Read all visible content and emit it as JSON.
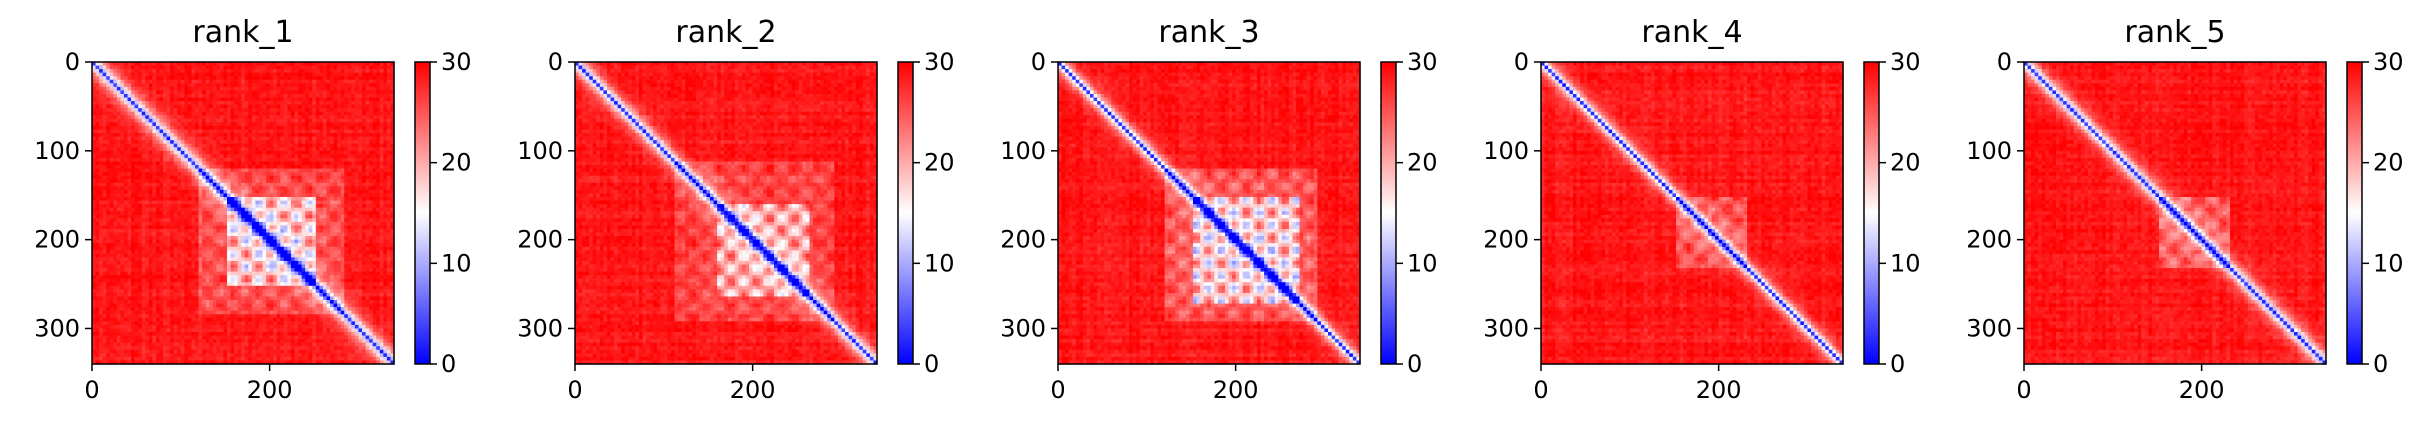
{
  "chart_data": [
    {
      "type": "heatmap",
      "title": "rank_1",
      "xticks": [
        "0",
        "200"
      ],
      "yticks": [
        "0",
        "100",
        "200",
        "300"
      ],
      "xlim": [
        0,
        340
      ],
      "ylim": [
        340,
        0
      ],
      "colorbar": {
        "ticks": [
          "0",
          "10",
          "20",
          "30"
        ],
        "range": [
          0,
          30
        ],
        "colors": [
          "#0000ff",
          "#ffffff",
          "#ff0000"
        ]
      }
    },
    {
      "type": "heatmap",
      "title": "rank_2",
      "xticks": [
        "0",
        "200"
      ],
      "yticks": [
        "0",
        "100",
        "200",
        "300"
      ],
      "xlim": [
        0,
        340
      ],
      "ylim": [
        340,
        0
      ],
      "colorbar": {
        "ticks": [
          "0",
          "10",
          "20",
          "30"
        ],
        "range": [
          0,
          30
        ],
        "colors": [
          "#0000ff",
          "#ffffff",
          "#ff0000"
        ]
      }
    },
    {
      "type": "heatmap",
      "title": "rank_3",
      "xticks": [
        "0",
        "200"
      ],
      "yticks": [
        "0",
        "100",
        "200",
        "300"
      ],
      "xlim": [
        0,
        340
      ],
      "ylim": [
        340,
        0
      ],
      "colorbar": {
        "ticks": [
          "0",
          "10",
          "20",
          "30"
        ],
        "range": [
          0,
          30
        ],
        "colors": [
          "#0000ff",
          "#ffffff",
          "#ff0000"
        ]
      }
    },
    {
      "type": "heatmap",
      "title": "rank_4",
      "xticks": [
        "0",
        "200"
      ],
      "yticks": [
        "0",
        "100",
        "200",
        "300"
      ],
      "xlim": [
        0,
        340
      ],
      "ylim": [
        340,
        0
      ],
      "colorbar": {
        "ticks": [
          "0",
          "10",
          "20",
          "30"
        ],
        "range": [
          0,
          30
        ],
        "colors": [
          "#0000ff",
          "#ffffff",
          "#ff0000"
        ]
      }
    },
    {
      "type": "heatmap",
      "title": "rank_5",
      "xticks": [
        "0",
        "200"
      ],
      "yticks": [
        "0",
        "100",
        "200",
        "300"
      ],
      "xlim": [
        0,
        340
      ],
      "ylim": [
        340,
        0
      ],
      "colorbar": {
        "ticks": [
          "0",
          "10",
          "20",
          "30"
        ],
        "range": [
          0,
          30
        ],
        "colors": [
          "#0000ff",
          "#ffffff",
          "#ff0000"
        ]
      }
    }
  ]
}
